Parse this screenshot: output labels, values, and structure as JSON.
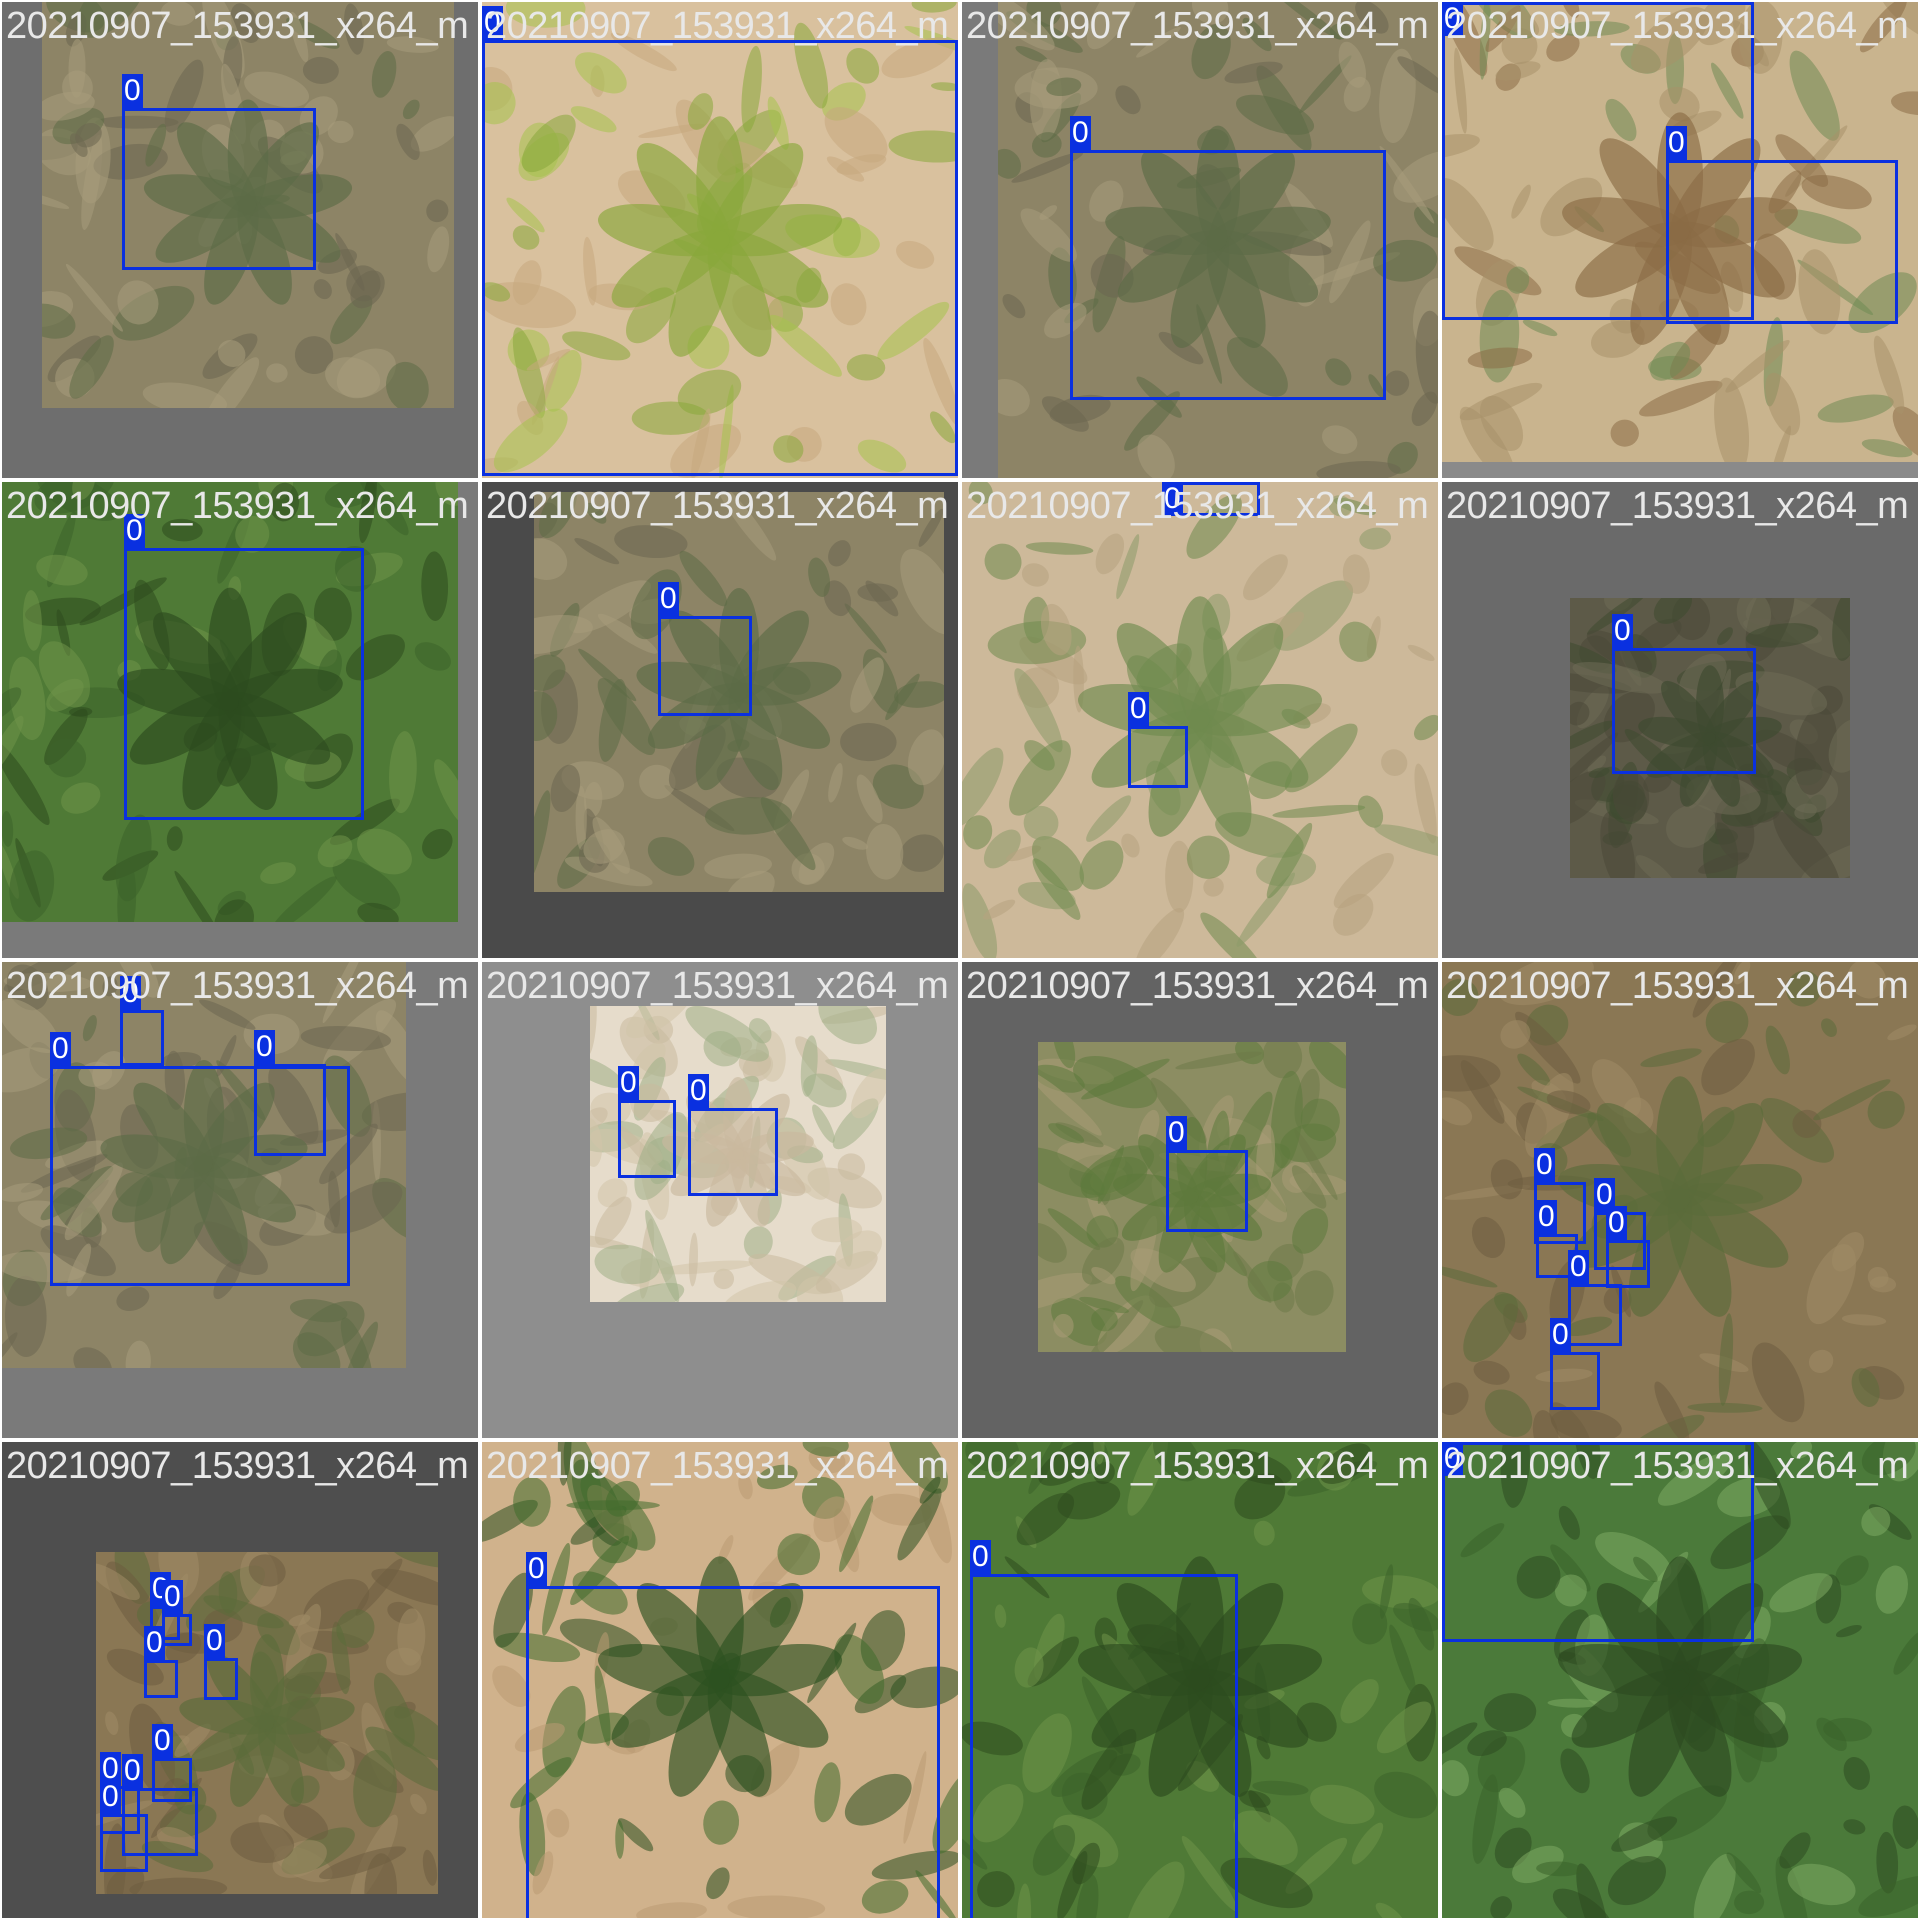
{
  "colors": {
    "box": "#0a30e0",
    "label_text": "#ffffff",
    "filename_text": "#e8e8e8"
  },
  "tiles": [
    {
      "name": "tile-r1c1",
      "filename": "20210907_153931_x264_m",
      "bg": "#6e6e6e",
      "photo": {
        "tone": "dry-grass"
      },
      "boxes": [
        {
          "label": "0"
        }
      ]
    },
    {
      "name": "tile-r1c2",
      "filename": "20210907_153931_x264_m",
      "bg": "#d8c09a",
      "photo": {
        "tone": "sand-leaf"
      },
      "boxes": [
        {
          "label": "0"
        }
      ]
    },
    {
      "name": "tile-r1c3",
      "filename": "20210907_153931_x264_m",
      "bg": "#7a7a7a",
      "photo": {
        "tone": "dry-grass"
      },
      "boxes": [
        {
          "label": "0"
        }
      ]
    },
    {
      "name": "tile-r1c4",
      "filename": "20210907_153931_x264_m",
      "bg": "#8a8a8a",
      "photo": {
        "tone": "straw"
      },
      "boxes": [
        {
          "label": "0"
        },
        {
          "label": "0"
        }
      ]
    },
    {
      "name": "tile-r2c1",
      "filename": "20210907_153931_x264_m",
      "bg": "#7a7a7a",
      "photo": {
        "tone": "green-grass"
      },
      "boxes": [
        {
          "label": "0"
        }
      ]
    },
    {
      "name": "tile-r2c2",
      "filename": "20210907_153931_x264_m",
      "bg": "#4a4a4a",
      "photo": {
        "tone": "dry-grass"
      },
      "boxes": [
        {
          "label": "0"
        }
      ]
    },
    {
      "name": "tile-r2c3",
      "filename": "20210907_153931_x264_m",
      "bg": "#d7c3a6",
      "photo": {
        "tone": "light-lawn"
      },
      "boxes": [
        {
          "label": "0"
        },
        {
          "label": "0"
        }
      ]
    },
    {
      "name": "tile-r2c4",
      "filename": "20210907_153931_x264_m",
      "bg": "#6a6a6a",
      "photo": {
        "tone": "dark-grass"
      },
      "boxes": [
        {
          "label": "0"
        }
      ]
    },
    {
      "name": "tile-r3c1",
      "filename": "20210907_153931_x264_m",
      "bg": "#7a7a7a",
      "photo": {
        "tone": "dry-grass"
      },
      "boxes": [
        {
          "label": "0"
        },
        {
          "label": "0"
        },
        {
          "label": "0"
        }
      ]
    },
    {
      "name": "tile-r3c2",
      "filename": "20210907_153931_x264_m",
      "bg": "#8e8e8e",
      "photo": {
        "tone": "pale-soil"
      },
      "boxes": [
        {
          "label": "0"
        },
        {
          "label": "0"
        }
      ]
    },
    {
      "name": "tile-r3c3",
      "filename": "20210907_153931_x264_m",
      "bg": "#636363",
      "photo": {
        "tone": "mixed-grass"
      },
      "boxes": [
        {
          "label": "0"
        }
      ]
    },
    {
      "name": "tile-r3c4",
      "filename": "20210907_153931_x264_m",
      "bg": "#6e5f45",
      "photo": {
        "tone": "brown-soil"
      },
      "boxes": [
        {
          "label": "0"
        },
        {
          "label": "0"
        },
        {
          "label": "0"
        },
        {
          "label": "0"
        },
        {
          "label": "0"
        },
        {
          "label": "0"
        },
        {
          "label": "0"
        },
        {
          "label": "0"
        }
      ]
    },
    {
      "name": "tile-r4c1",
      "filename": "20210907_153931_x264_m",
      "bg": "#4e4e4e",
      "photo": {
        "tone": "brown-soil"
      },
      "boxes": [
        {
          "label": "0"
        },
        {
          "label": "0"
        },
        {
          "label": "0"
        },
        {
          "label": "0"
        },
        {
          "label": "0"
        },
        {
          "label": "0"
        },
        {
          "label": "0"
        },
        {
          "label": "0"
        }
      ]
    },
    {
      "name": "tile-r4c2",
      "filename": "20210907_153931_x264_m",
      "bg": "#c9ab86",
      "photo": {
        "tone": "wall-green"
      },
      "boxes": [
        {
          "label": "0"
        }
      ]
    },
    {
      "name": "tile-r4c3",
      "filename": "20210907_153931_x264_m",
      "bg": "#a19a7a",
      "photo": {
        "tone": "green-grass"
      },
      "boxes": [
        {
          "label": "0"
        }
      ]
    },
    {
      "name": "tile-r4c4",
      "filename": "20210907_153931_x264_m",
      "bg": "#3f5b35",
      "photo": {
        "tone": "big-leaf"
      },
      "boxes": [
        {
          "label": "0"
        }
      ]
    }
  ]
}
